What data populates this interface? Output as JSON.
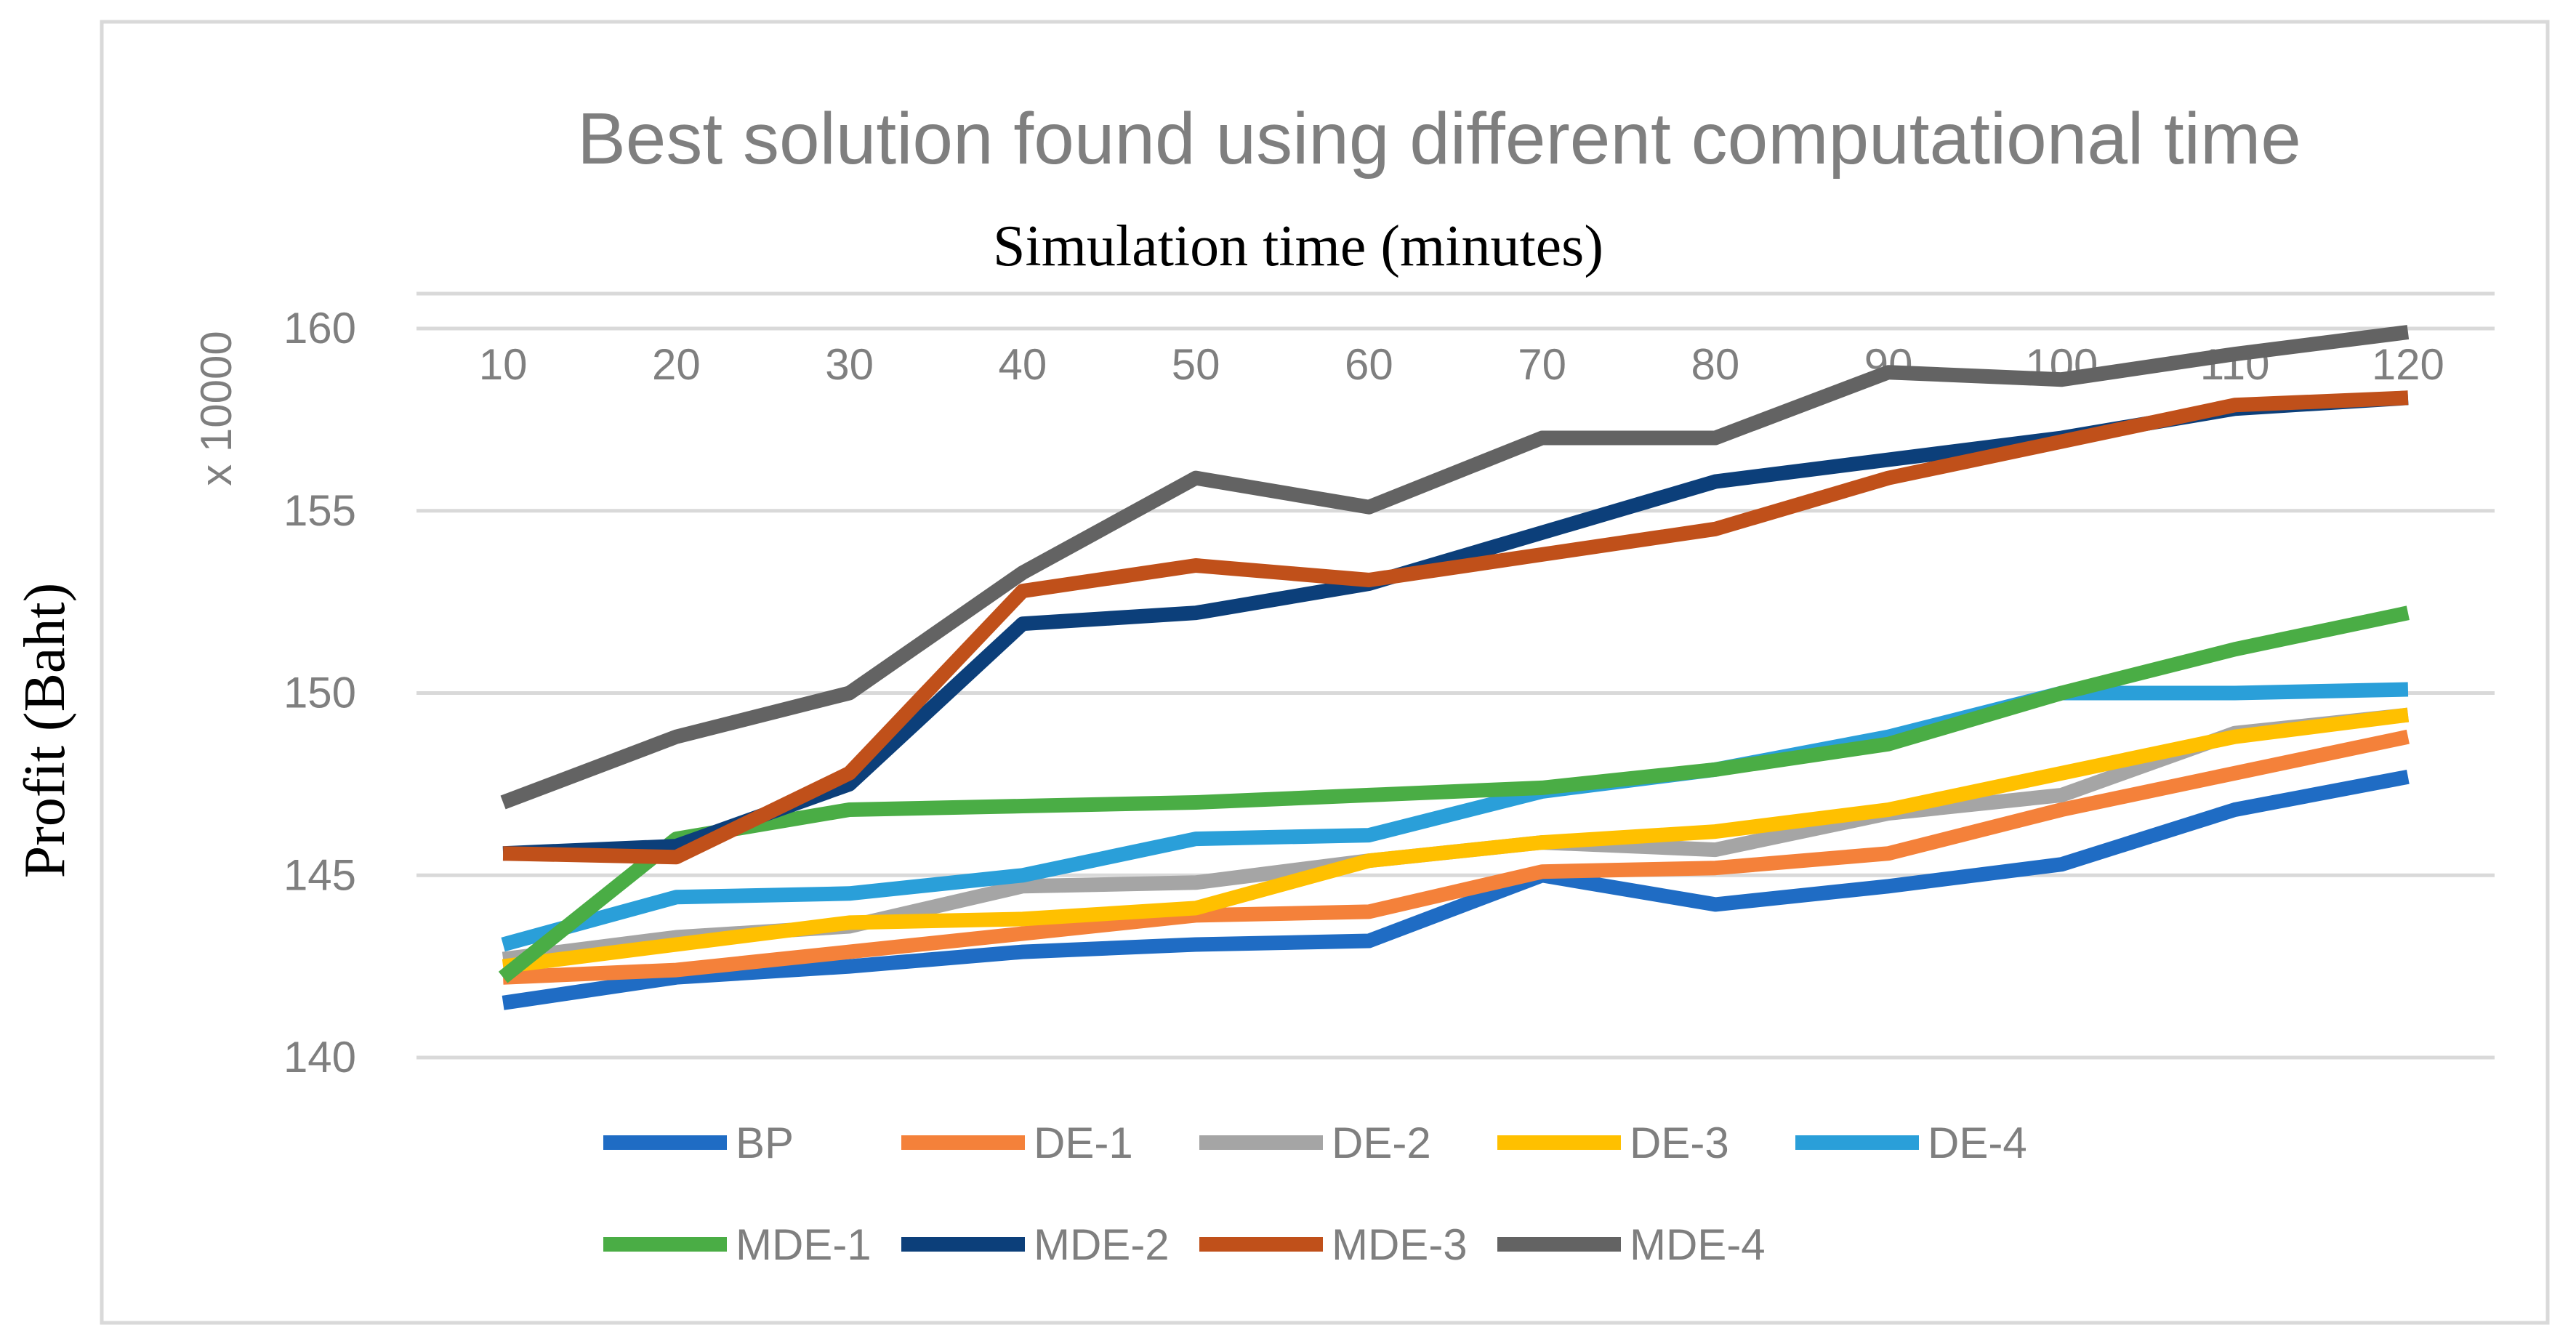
{
  "chart_data": {
    "type": "line",
    "title": "Best solution found using different computational time",
    "xlabel": "Simulation time (minutes)",
    "ylabel": "Profit (Baht)",
    "y_unit_label": "x 10000",
    "categories": [
      "10",
      "20",
      "30",
      "40",
      "50",
      "60",
      "70",
      "80",
      "90",
      "100",
      "110",
      "120"
    ],
    "ylim": [
      140,
      160
    ],
    "yticks": [
      140,
      145,
      150,
      155,
      160
    ],
    "grid": true,
    "x_axis_position": "top",
    "legend_position": "bottom",
    "series": [
      {
        "name": "BP",
        "color": "#1f6cc4",
        "values": [
          141.5,
          142.2,
          142.5,
          142.9,
          143.1,
          143.2,
          145.0,
          144.2,
          144.7,
          145.3,
          146.8,
          147.7
        ]
      },
      {
        "name": "DE-1",
        "color": "#f4813a",
        "values": [
          142.2,
          142.4,
          142.9,
          143.4,
          143.9,
          144.0,
          145.1,
          145.2,
          145.6,
          146.8,
          147.8,
          148.8
        ]
      },
      {
        "name": "DE-2",
        "color": "#a5a5a5",
        "values": [
          142.7,
          143.3,
          143.6,
          144.7,
          144.8,
          145.4,
          145.9,
          145.7,
          146.7,
          147.2,
          148.9,
          149.4
        ]
      },
      {
        "name": "DE-3",
        "color": "#ffc000",
        "values": [
          142.5,
          143.1,
          143.7,
          143.8,
          144.1,
          145.4,
          145.9,
          146.2,
          146.8,
          147.8,
          148.8,
          149.4
        ]
      },
      {
        "name": "DE-4",
        "color": "#2a9fd9",
        "values": [
          143.1,
          144.4,
          144.5,
          145.0,
          146.0,
          146.1,
          147.3,
          147.9,
          148.8,
          150.0,
          150.0,
          150.1
        ]
      },
      {
        "name": "MDE-1",
        "color": "#4aad45",
        "values": [
          142.2,
          146.0,
          146.8,
          146.9,
          147.0,
          147.2,
          147.4,
          147.9,
          148.6,
          150.0,
          151.2,
          152.2
        ]
      },
      {
        "name": "MDE-2",
        "color": "#0c3f7a",
        "values": [
          145.6,
          145.8,
          147.5,
          151.9,
          152.2,
          153.0,
          154.4,
          155.8,
          156.4,
          157.0,
          157.8,
          158.1
        ]
      },
      {
        "name": "MDE-3",
        "color": "#c0501a",
        "values": [
          145.6,
          145.5,
          147.8,
          152.8,
          153.5,
          153.1,
          153.8,
          154.5,
          155.9,
          156.9,
          157.9,
          158.1
        ]
      },
      {
        "name": "MDE-4",
        "color": "#636363",
        "values": [
          147.0,
          148.8,
          150.0,
          153.3,
          155.9,
          155.1,
          157.0,
          157.0,
          158.8,
          158.6,
          159.3,
          159.9
        ]
      }
    ]
  }
}
